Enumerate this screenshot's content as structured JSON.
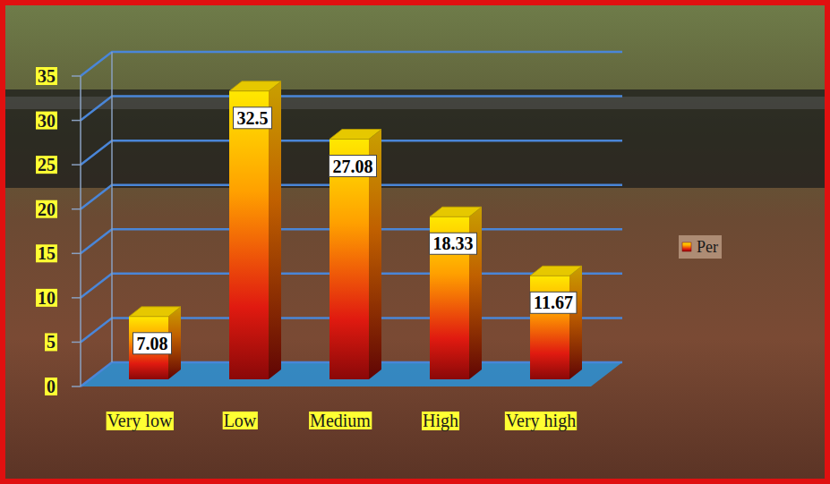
{
  "chart_data": {
    "type": "bar",
    "categories": [
      "Very low",
      "Low",
      "Medium",
      "High",
      "Very high"
    ],
    "series": [
      {
        "name": "Per",
        "color": "#e01a10",
        "values": [
          7.08,
          32.5,
          27.08,
          18.33,
          11.67
        ]
      }
    ],
    "ylim": [
      0,
      35
    ],
    "yticks": [
      0,
      5,
      10,
      15,
      20,
      25,
      30,
      35
    ],
    "grid": true,
    "data_labels": true,
    "legend": "right"
  }
}
